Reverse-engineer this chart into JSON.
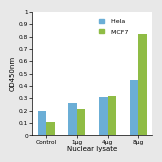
{
  "categories": [
    "Control",
    "1μg",
    "4μg",
    "8μg"
  ],
  "series": [
    {
      "label": " Hela",
      "color": "#6baed6",
      "values": [
        0.2,
        0.26,
        0.31,
        0.45
      ]
    },
    {
      "label": " MCF7",
      "color": "#8fbc45",
      "values": [
        0.11,
        0.21,
        0.32,
        0.82
      ]
    }
  ],
  "xlabel": "Nuclear lysate",
  "ylabel": "OD450nm",
  "ylim": [
    0,
    1.0
  ],
  "yticks": [
    0,
    0.1,
    0.2,
    0.3,
    0.4,
    0.5,
    0.6,
    0.7,
    0.8,
    0.9,
    1
  ],
  "ytick_labels": [
    "0",
    "0.1",
    "0.2",
    "0.3",
    "0.4",
    "0.5",
    "0.6",
    "0.7",
    "0.8",
    "0.9",
    "1"
  ],
  "background_color": "#e8e8e8",
  "plot_bg_color": "#ffffff",
  "bar_width": 0.28,
  "legend_fontsize": 4.5,
  "axis_fontsize": 5,
  "tick_fontsize": 4.2
}
